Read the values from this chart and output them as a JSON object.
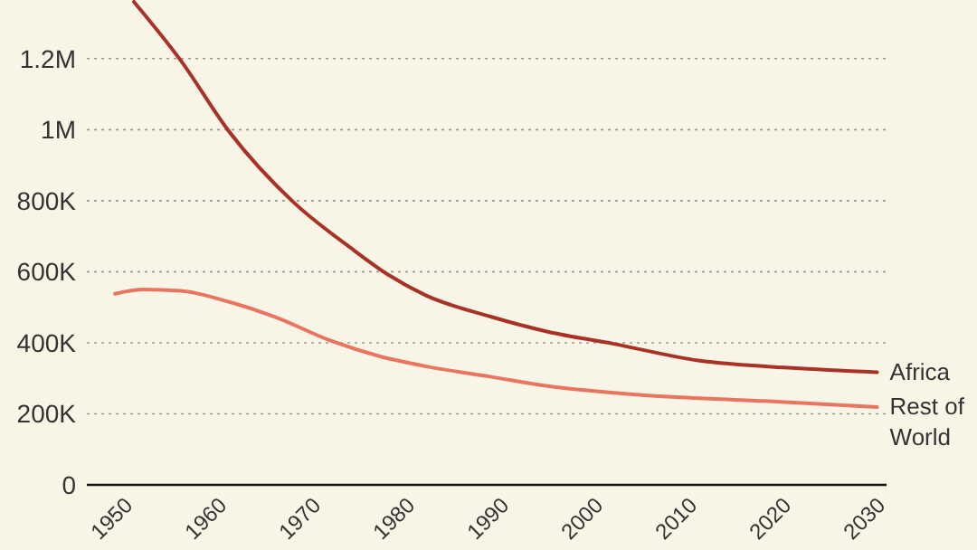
{
  "chart_data": {
    "type": "line",
    "x": [
      1950,
      1955,
      1960,
      1967,
      1973,
      1977,
      1981,
      1988,
      1994,
      2001,
      2010,
      2020,
      2029
    ],
    "series": [
      {
        "name": "Africa",
        "color": "#a83226",
        "values": [
          1360000,
          1194000,
          999000,
          795000,
          668000,
          592000,
          534000,
          473000,
          431000,
          397000,
          350000,
          329000,
          317000
        ]
      },
      {
        "name": "Rest of World",
        "color": "#e8755f",
        "x": [
          1948,
          1951,
          1955,
          1960,
          1965,
          1971,
          1976,
          1981,
          1988,
          1994,
          2004,
          2017,
          2029
        ],
        "values": [
          538000,
          550000,
          546000,
          516000,
          473000,
          405000,
          363000,
          334000,
          304000,
          278000,
          253000,
          236000,
          219000
        ]
      }
    ],
    "xlim": [
      1945,
      2030
    ],
    "xticks": [
      1950,
      1960,
      1970,
      1980,
      1990,
      2000,
      2010,
      2020,
      2030
    ],
    "ylim": [
      0,
      1360000
    ],
    "yticks": [
      0,
      {
        "value": 200000,
        "label": "200K"
      },
      {
        "value": 400000,
        "label": "400K"
      },
      {
        "value": 600000,
        "label": "600K"
      },
      {
        "value": 800000,
        "label": "800K"
      },
      {
        "value": 1000000,
        "label": "1M"
      },
      {
        "value": 1200000,
        "label": "1.2M"
      }
    ],
    "grid": "y",
    "line_style": "solid",
    "marker": "none"
  }
}
